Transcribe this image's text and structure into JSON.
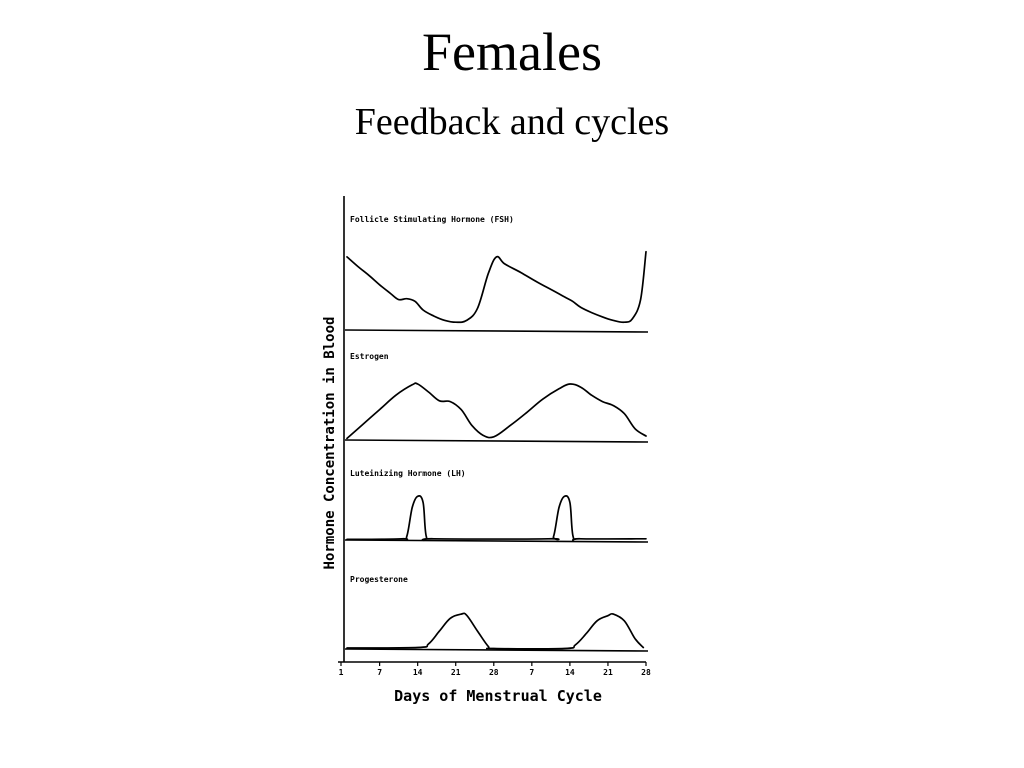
{
  "slide": {
    "title": "Females",
    "subtitle": "Feedback and cycles"
  },
  "chart_data": {
    "type": "line",
    "xlabel": "Days of Menstrual Cycle",
    "ylabel": "Hormone Concentration in Blood",
    "x_ticks": [
      "1",
      "7",
      "14",
      "21",
      "28",
      "7",
      "14",
      "21",
      "28"
    ],
    "x_tick_days": [
      1,
      7,
      14,
      21,
      28,
      35,
      42,
      49,
      56
    ],
    "xlim": [
      1,
      56
    ],
    "series": [
      {
        "name": "Follicle Stimulating Hormone (FSH)",
        "points": [
          [
            1,
            8.4
          ],
          [
            3,
            7.3
          ],
          [
            5,
            6.3
          ],
          [
            7,
            5.2
          ],
          [
            9,
            4.2
          ],
          [
            10.5,
            3.5
          ],
          [
            12,
            3.6
          ],
          [
            13.5,
            3.3
          ],
          [
            15,
            2.3
          ],
          [
            17,
            1.6
          ],
          [
            19,
            1.1
          ],
          [
            21,
            0.9
          ],
          [
            23,
            1.1
          ],
          [
            25,
            2.5
          ],
          [
            27,
            6.5
          ],
          [
            28.5,
            8.4
          ],
          [
            30,
            7.6
          ],
          [
            33,
            6.6
          ],
          [
            36,
            5.5
          ],
          [
            39,
            4.5
          ],
          [
            41,
            3.8
          ],
          [
            42.5,
            3.3
          ],
          [
            44,
            2.6
          ],
          [
            46,
            2.0
          ],
          [
            48,
            1.5
          ],
          [
            50,
            1.1
          ],
          [
            52,
            0.9
          ],
          [
            53.5,
            1.3
          ],
          [
            55,
            3.5
          ],
          [
            56,
            9.0
          ]
        ],
        "ylim": [
          0,
          10
        ]
      },
      {
        "name": "Estrogen",
        "points": [
          [
            1,
            0.2
          ],
          [
            4,
            2.0
          ],
          [
            7,
            3.8
          ],
          [
            10,
            5.6
          ],
          [
            13,
            6.9
          ],
          [
            14,
            7.0
          ],
          [
            16,
            6.0
          ],
          [
            18,
            4.9
          ],
          [
            20,
            4.8
          ],
          [
            22,
            3.8
          ],
          [
            24,
            1.8
          ],
          [
            26,
            0.6
          ],
          [
            28,
            0.4
          ],
          [
            31,
            1.8
          ],
          [
            34,
            3.4
          ],
          [
            37,
            5.1
          ],
          [
            40,
            6.4
          ],
          [
            42,
            7.0
          ],
          [
            44,
            6.6
          ],
          [
            46,
            5.6
          ],
          [
            48,
            4.8
          ],
          [
            50,
            4.3
          ],
          [
            52,
            3.3
          ],
          [
            54,
            1.4
          ],
          [
            56,
            0.5
          ]
        ],
        "ylim": [
          0,
          8
        ]
      },
      {
        "name": "Luteinizing Hormone (LH)",
        "points": [
          [
            1,
            0.1
          ],
          [
            11,
            0.2
          ],
          [
            12,
            0.6
          ],
          [
            13,
            5.2
          ],
          [
            14,
            7.0
          ],
          [
            15,
            6.0
          ],
          [
            15.6,
            0.5
          ],
          [
            17,
            0.2
          ],
          [
            38,
            0.2
          ],
          [
            39,
            0.6
          ],
          [
            40,
            5.2
          ],
          [
            41,
            7.0
          ],
          [
            42,
            6.0
          ],
          [
            42.6,
            0.5
          ],
          [
            44,
            0.2
          ],
          [
            56,
            0.2
          ]
        ],
        "ylim": [
          0,
          8
        ]
      },
      {
        "name": "Progesterone",
        "points": [
          [
            1,
            0.2
          ],
          [
            14,
            0.3
          ],
          [
            16,
            1.0
          ],
          [
            18,
            3.5
          ],
          [
            20,
            6.0
          ],
          [
            22,
            6.8
          ],
          [
            23,
            6.6
          ],
          [
            25,
            3.5
          ],
          [
            27,
            0.5
          ],
          [
            28,
            0.1
          ],
          [
            41,
            0.1
          ],
          [
            43,
            0.8
          ],
          [
            45,
            3.0
          ],
          [
            47,
            5.5
          ],
          [
            49,
            6.5
          ],
          [
            50,
            6.8
          ],
          [
            52,
            5.5
          ],
          [
            54,
            2.0
          ],
          [
            55.5,
            0.3
          ]
        ],
        "ylim": [
          0,
          8
        ]
      }
    ],
    "grid": false,
    "legend": "none"
  }
}
